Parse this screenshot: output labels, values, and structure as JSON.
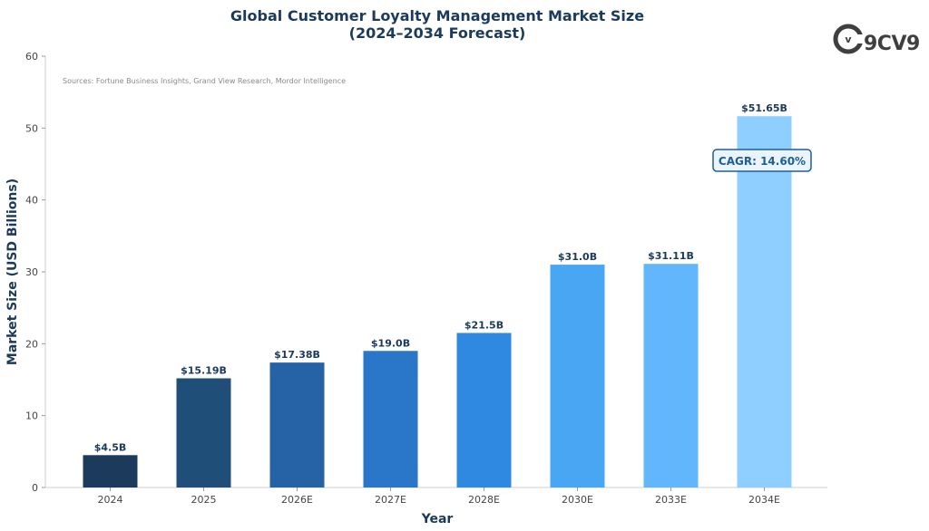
{
  "chart_data": {
    "type": "bar",
    "title_line1": "Global Customer Loyalty Management Market Size",
    "title_line2": "(2024–2034 Forecast)",
    "source_note": "Sources: Fortune Business Insights, Grand View Research, Mordor Intelligence",
    "xlabel": "Year",
    "ylabel": "Market Size (USD Billions)",
    "ylim": [
      0,
      60
    ],
    "yticks": [
      0,
      10,
      20,
      30,
      40,
      50,
      60
    ],
    "categories": [
      "2024",
      "2025",
      "2026E",
      "2027E",
      "2028E",
      "2030E",
      "2033E",
      "2034E"
    ],
    "values": [
      4.5,
      15.19,
      17.38,
      19.0,
      21.5,
      31.0,
      31.11,
      51.65
    ],
    "data_labels": [
      "$4.5B",
      "$15.19B",
      "$17.38B",
      "$19.0B",
      "$21.5B",
      "$31.0B",
      "$31.11B",
      "$51.65B"
    ],
    "bar_colors": [
      "#1b3a5c",
      "#1f4e79",
      "#2563a6",
      "#2a77c9",
      "#2f89e0",
      "#48a6f2",
      "#62b6fb",
      "#8ecfff"
    ],
    "annotation": "CAGR: 14.60%",
    "grid": false
  },
  "logo": {
    "text": "9CV9",
    "icon": "v-circle-logo-icon"
  },
  "colors": {
    "title": "#1b3a5c",
    "axis_label": "#1b3a5c",
    "annotation": "#1f5d99",
    "annotation_bg": "#eaf4fc"
  }
}
